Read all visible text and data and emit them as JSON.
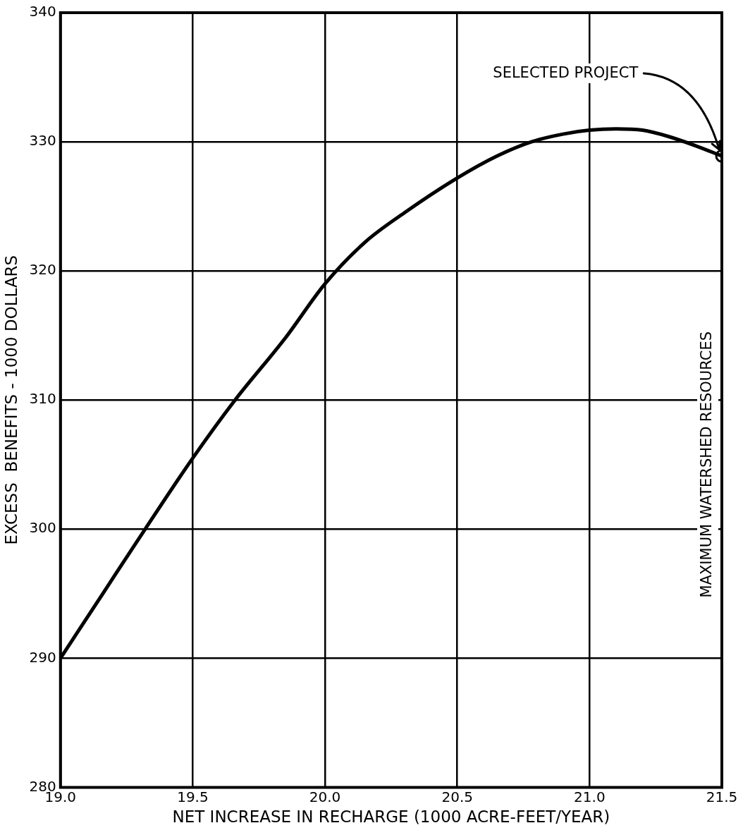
{
  "chart_data": {
    "type": "line",
    "xlabel": "NET INCREASE IN RECHARGE (1000 ACRE-FEET/YEAR)",
    "ylabel": "EXCESS  BENEFITS - 1000 DOLLARS",
    "xlim": [
      19.0,
      21.5
    ],
    "xticks": [
      {
        "value": 19.0,
        "label": "19.0"
      },
      {
        "value": 19.5,
        "label": "19.5"
      },
      {
        "value": 20.0,
        "label": "20.0"
      },
      {
        "value": 20.5,
        "label": "20.5"
      },
      {
        "value": 21.0,
        "label": "21.0"
      },
      {
        "value": 21.5,
        "label": "21.5"
      }
    ],
    "ylim": [
      280,
      340
    ],
    "yticks": [
      280,
      290,
      300,
      310,
      320,
      330,
      340
    ],
    "grid": true,
    "legend": false,
    "series": [
      {
        "color": "#000000",
        "marker": "none",
        "x": [
          19.0,
          19.16,
          19.32,
          19.5,
          19.66,
          19.85,
          20.0,
          20.15,
          20.3,
          20.5,
          20.65,
          20.78,
          20.9,
          21.0,
          21.1,
          21.2,
          21.3,
          21.4,
          21.5
        ],
        "values": [
          290,
          295,
          300,
          305.5,
          310,
          314.8,
          319.0,
          322.2,
          324.5,
          327.2,
          328.9,
          330,
          330.6,
          330.9,
          331,
          330.9,
          330.4,
          329.7,
          328.9
        ]
      },
      {
        "type": "scatter",
        "color": "#000000",
        "marker": "circle",
        "x": [
          21.5
        ],
        "values": [
          328.9
        ]
      }
    ],
    "annotations": [
      {
        "text": "SELECTED PROJECT",
        "x": 21.49,
        "y": 329.4
      },
      "MAXIMUM WATERSHED RESOURCES"
    ]
  }
}
